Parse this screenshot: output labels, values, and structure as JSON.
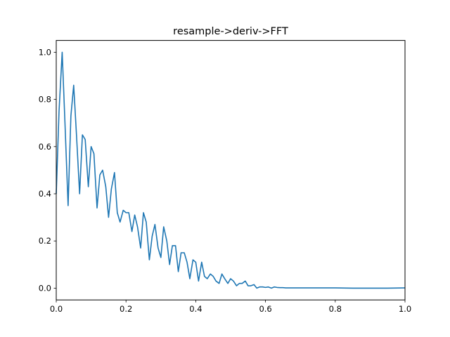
{
  "chart_data": {
    "type": "line",
    "title": "resample->deriv->FFT",
    "xlabel": "",
    "ylabel": "",
    "xlim": [
      0.0,
      1.0
    ],
    "ylim": [
      -0.05,
      1.05
    ],
    "grid": false,
    "x_ticks": [
      "0.0",
      "0.2",
      "0.4",
      "0.6",
      "0.8",
      "1.0"
    ],
    "y_ticks": [
      "0.0",
      "0.2",
      "0.4",
      "0.6",
      "0.8",
      "1.0"
    ],
    "colors": {
      "line": "#1f77b4",
      "axes": "#000000",
      "background": "#ffffff"
    },
    "series": [
      {
        "x": [
          0.0,
          0.008,
          0.017,
          0.025,
          0.034,
          0.042,
          0.05,
          0.058,
          0.067,
          0.075,
          0.083,
          0.092,
          0.1,
          0.108,
          0.117,
          0.125,
          0.133,
          0.142,
          0.15,
          0.158,
          0.167,
          0.175,
          0.183,
          0.192,
          0.2,
          0.208,
          0.217,
          0.225,
          0.233,
          0.242,
          0.25,
          0.258,
          0.267,
          0.275,
          0.283,
          0.292,
          0.3,
          0.308,
          0.317,
          0.325,
          0.333,
          0.342,
          0.35,
          0.358,
          0.367,
          0.375,
          0.383,
          0.392,
          0.4,
          0.408,
          0.417,
          0.425,
          0.433,
          0.442,
          0.45,
          0.458,
          0.467,
          0.475,
          0.483,
          0.492,
          0.5,
          0.508,
          0.517,
          0.525,
          0.533,
          0.542,
          0.55,
          0.558,
          0.567,
          0.575,
          0.583,
          0.592,
          0.6,
          0.608,
          0.617,
          0.625,
          0.633,
          0.642,
          0.65,
          0.658,
          0.667,
          0.675,
          0.7,
          0.75,
          0.8,
          0.85,
          0.9,
          0.95,
          1.0
        ],
        "y": [
          0.4,
          0.75,
          1.0,
          0.7,
          0.35,
          0.73,
          0.86,
          0.65,
          0.4,
          0.65,
          0.63,
          0.43,
          0.6,
          0.57,
          0.34,
          0.48,
          0.5,
          0.43,
          0.3,
          0.42,
          0.49,
          0.32,
          0.28,
          0.33,
          0.32,
          0.32,
          0.24,
          0.31,
          0.26,
          0.17,
          0.32,
          0.28,
          0.12,
          0.22,
          0.27,
          0.17,
          0.13,
          0.26,
          0.2,
          0.1,
          0.18,
          0.18,
          0.07,
          0.15,
          0.15,
          0.11,
          0.04,
          0.12,
          0.11,
          0.03,
          0.11,
          0.05,
          0.04,
          0.06,
          0.05,
          0.03,
          0.02,
          0.06,
          0.04,
          0.02,
          0.04,
          0.03,
          0.01,
          0.02,
          0.02,
          0.03,
          0.01,
          0.01,
          0.015,
          0.0,
          0.005,
          0.005,
          0.003,
          0.005,
          0.0,
          0.005,
          0.003,
          0.002,
          0.002,
          0.001,
          0.001,
          0.001,
          0.001,
          0.001,
          0.001,
          0.0,
          0.0,
          0.0,
          0.001
        ]
      }
    ]
  }
}
